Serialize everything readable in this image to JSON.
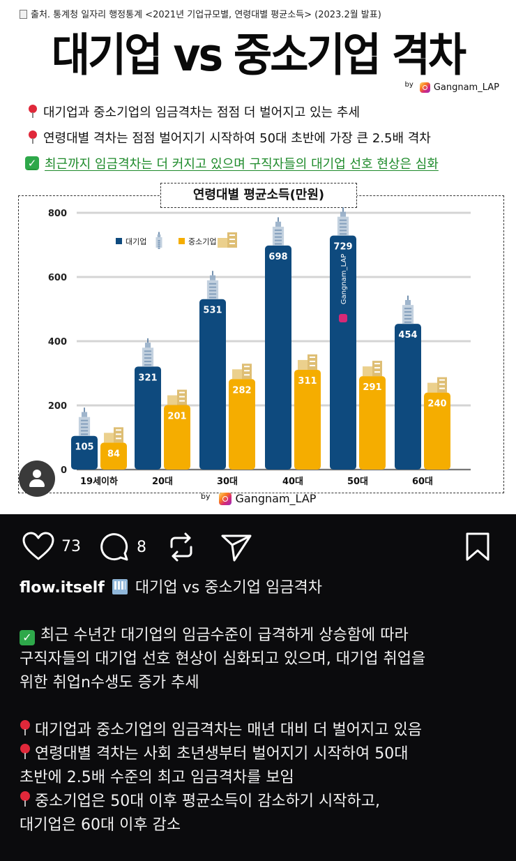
{
  "image": {
    "source_text": "출처. 통계청 일자리 행정통계 <2021년 기업규모별, 연령대별 평균소득> (2023.2월 발표)",
    "headline": "대기업 vs 중소기업 격차",
    "byline_by": "by",
    "byline_handle": "Gangnam_LAP",
    "bullets": [
      "대기업과 중소기업의 임금격차는 점점 더 벌어지고 있는 추세",
      "연령대별 격차는 점점 벌어지기 시작하여 50대 초반에 가장 큰 2.5배 격차",
      "최근까지 임금격차는 더 커지고 있으며 구직자들의 대기업 선호 현상은 심화"
    ],
    "footer_by": "by",
    "footer_handle": "Gangnam_LAP",
    "watermark": "Gangnam_LAP"
  },
  "chart_data": {
    "type": "bar",
    "title": "연령대별 평균소득(만원)",
    "categories": [
      "19세이하",
      "20대",
      "30대",
      "40대",
      "50대",
      "60대"
    ],
    "series": [
      {
        "name": "대기업",
        "values": [
          105,
          321,
          531,
          698,
          729,
          454
        ],
        "color": "#0e4a7e"
      },
      {
        "name": "중소기업",
        "values": [
          84,
          201,
          282,
          311,
          291,
          240
        ],
        "color": "#f5ad00"
      }
    ],
    "yticks": [
      0,
      200,
      400,
      600,
      800
    ],
    "ylim": [
      0,
      800
    ],
    "grid": true,
    "legend": "top-left"
  },
  "actions": {
    "like_count": "73",
    "comment_count": "8"
  },
  "caption": {
    "username": "flow.itself",
    "title": "대기업 vs 중소기업 임금격차",
    "para1": [
      "최근 수년간 대기업의 임금수준이 급격하게 상승함에 따라",
      "구직자들의 대기업 선호 현상이 심화되고 있으며, 대기업 취업을",
      "위한 취업n수생도 증가 추세"
    ],
    "para2": [
      "대기업과 중소기업의 임금격차는 매년 대비 더 벌어지고 있음",
      "연령대별 격차는 사회 초년생부터 벌어지기 시작하여 50대",
      "초반에 2.5배 수준의 최고 임금격차를 보임",
      "중소기업은 50대 이후 평균소득이 감소하기 시작하고,",
      "대기업은 60대 이후 감소"
    ]
  }
}
